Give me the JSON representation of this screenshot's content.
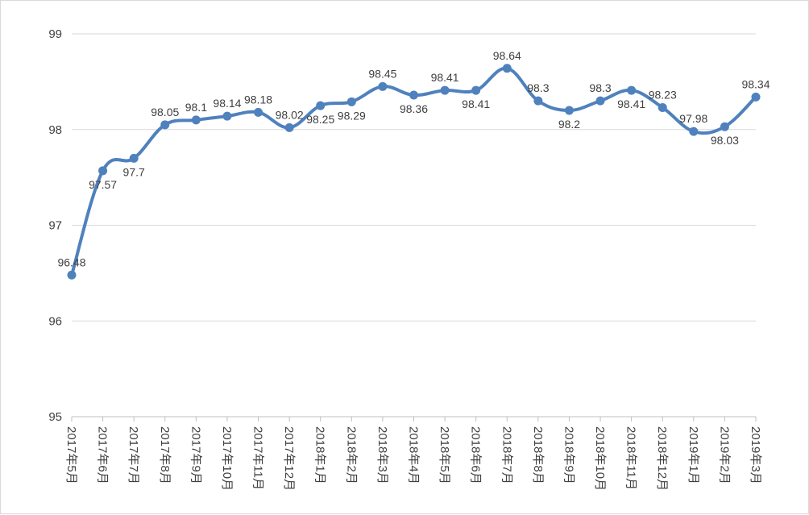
{
  "chart_data": {
    "type": "line",
    "title": "",
    "xlabel": "",
    "ylabel": "",
    "ylim": [
      95,
      99
    ],
    "yticks": [
      "95",
      "96",
      "97",
      "98",
      "99"
    ],
    "grid": true,
    "series_color": "#4f81bd",
    "categories": [
      "2017年5月",
      "2017年6月",
      "2017年7月",
      "2017年8月",
      "2017年9月",
      "2017年10月",
      "2017年11月",
      "2017年12月",
      "2018年1月",
      "2018年2月",
      "2018年3月",
      "2018年4月",
      "2018年5月",
      "2018年6月",
      "2018年7月",
      "2018年8月",
      "2018年9月",
      "2018年10月",
      "2018年11月",
      "2018年12月",
      "2019年1月",
      "2019年2月",
      "2019年3月"
    ],
    "values": [
      96.48,
      97.57,
      97.7,
      98.05,
      98.1,
      98.14,
      98.18,
      98.02,
      98.25,
      98.29,
      98.45,
      98.36,
      98.41,
      98.41,
      98.64,
      98.3,
      98.2,
      98.3,
      98.41,
      98.23,
      97.98,
      98.03,
      98.34
    ],
    "labels": [
      "96.48",
      "97.57",
      "97.7",
      "98.05",
      "98.1",
      "98.14",
      "98.18",
      "98.02",
      "98.25",
      "98.29",
      "98.45",
      "98.36",
      "98.41",
      "98.41",
      "98.64",
      "98.3",
      "98.2",
      "98.3",
      "98.41",
      "98.23",
      "97.98",
      "98.03",
      "98.34"
    ]
  }
}
